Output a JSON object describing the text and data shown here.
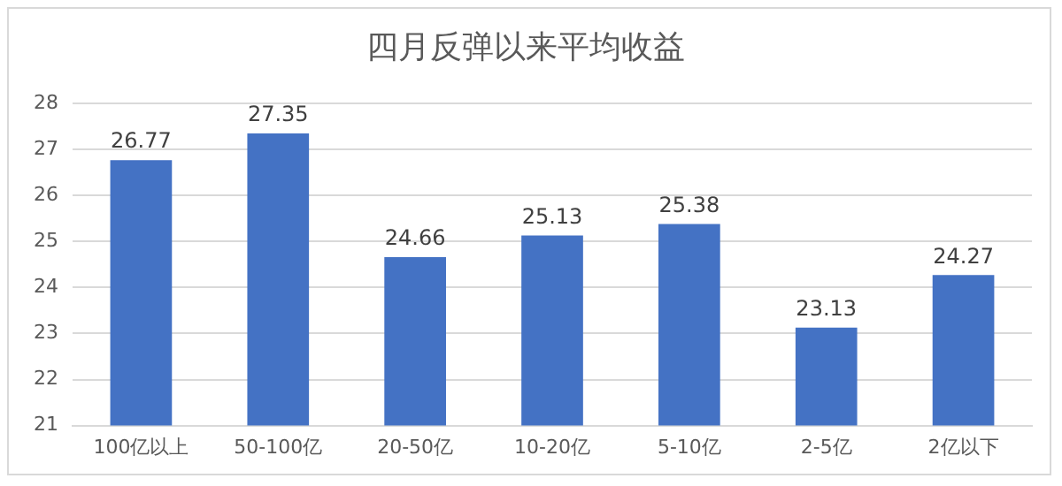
{
  "chart_data": {
    "type": "bar",
    "title": "四月反弹以来平均收益",
    "categories": [
      "100亿以上",
      "50-100亿",
      "20-50亿",
      "10-20亿",
      "5-10亿",
      "2-5亿",
      "2亿以下"
    ],
    "values": [
      26.77,
      27.35,
      24.66,
      25.13,
      25.38,
      23.13,
      24.27
    ],
    "color": "#4472c4",
    "ylim": [
      21,
      28
    ],
    "yticks": [
      21,
      22,
      23,
      24,
      25,
      26,
      27,
      28
    ],
    "grid": "y",
    "data_labels": true,
    "legend": false
  }
}
